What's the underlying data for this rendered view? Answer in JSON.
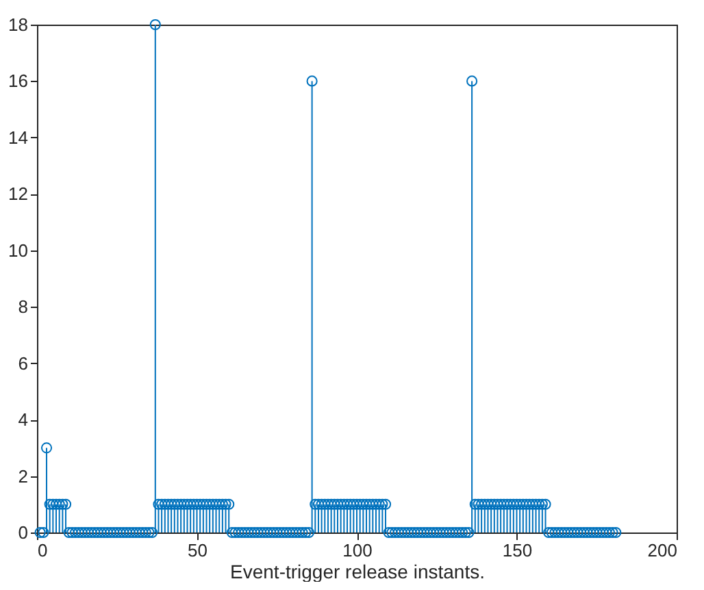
{
  "chart_data": {
    "type": "lollipop",
    "xlabel": "Event-trigger release instants.",
    "x": [
      1,
      2,
      3,
      4,
      5,
      6,
      7,
      8,
      9,
      10,
      11,
      12,
      13,
      14,
      15,
      16,
      17,
      18,
      19,
      20,
      21,
      22,
      23,
      24,
      25,
      26,
      27,
      28,
      29,
      30,
      31,
      32,
      33,
      34,
      35,
      36,
      37,
      38,
      39,
      40,
      41,
      42,
      43,
      44,
      45,
      46,
      47,
      48,
      49,
      50,
      51,
      52,
      53,
      54,
      55,
      56,
      57,
      58,
      59,
      60,
      61,
      62,
      63,
      64,
      65,
      66,
      67,
      68,
      69,
      70,
      71,
      72,
      73,
      74,
      75,
      76,
      77,
      78,
      79,
      80,
      81,
      82,
      83,
      84,
      85,
      86,
      87,
      88,
      89,
      90,
      91,
      92,
      93,
      94,
      95,
      96,
      97,
      98,
      99,
      100,
      101,
      102,
      103,
      104,
      105,
      106,
      107,
      108,
      109,
      110,
      111,
      112,
      113,
      114,
      115,
      116,
      117,
      118,
      119,
      120,
      121,
      122,
      123,
      124,
      125,
      126,
      127,
      128,
      129,
      130,
      131,
      132,
      133,
      134,
      135,
      136,
      137,
      138,
      139,
      140,
      141,
      142,
      143,
      144,
      145,
      146,
      147,
      148,
      149,
      150,
      151,
      152,
      153,
      154,
      155,
      156,
      157,
      158,
      159,
      160,
      161,
      162,
      163,
      164,
      165,
      166,
      167,
      168,
      169,
      170,
      171,
      172,
      173,
      174,
      175,
      176,
      177,
      178,
      179,
      180,
      181
    ],
    "values": [
      0,
      0,
      3,
      1,
      1,
      1,
      1,
      1,
      1,
      0,
      0,
      0,
      0,
      0,
      0,
      0,
      0,
      0,
      0,
      0,
      0,
      0,
      0,
      0,
      0,
      0,
      0,
      0,
      0,
      0,
      0,
      0,
      0,
      0,
      0,
      0,
      18,
      1,
      1,
      1,
      1,
      1,
      1,
      1,
      1,
      1,
      1,
      1,
      1,
      1,
      1,
      1,
      1,
      1,
      1,
      1,
      1,
      1,
      1,
      1,
      0,
      0,
      0,
      0,
      0,
      0,
      0,
      0,
      0,
      0,
      0,
      0,
      0,
      0,
      0,
      0,
      0,
      0,
      0,
      0,
      0,
      0,
      0,
      0,
      0,
      16,
      1,
      1,
      1,
      1,
      1,
      1,
      1,
      1,
      1,
      1,
      1,
      1,
      1,
      1,
      1,
      1,
      1,
      1,
      1,
      1,
      1,
      1,
      1,
      0,
      0,
      0,
      0,
      0,
      0,
      0,
      0,
      0,
      0,
      0,
      0,
      0,
      0,
      0,
      0,
      0,
      0,
      0,
      0,
      0,
      0,
      0,
      0,
      0,
      0,
      16,
      1,
      1,
      1,
      1,
      1,
      1,
      1,
      1,
      1,
      1,
      1,
      1,
      1,
      1,
      1,
      1,
      1,
      1,
      1,
      1,
      1,
      1,
      1,
      0,
      0,
      0,
      0,
      0,
      0,
      0,
      0,
      0,
      0,
      0,
      0,
      0,
      0,
      0,
      0,
      0,
      0,
      0,
      0,
      0,
      0
    ],
    "color": "#0072bd",
    "marker": "circle",
    "line_style": "solid",
    "grid": false,
    "xlim": [
      0,
      200
    ],
    "xticks": [
      0,
      50,
      100,
      150,
      200
    ],
    "ylim": [
      0,
      18
    ],
    "yticks": [
      0,
      2,
      4,
      6,
      8,
      10,
      12,
      14,
      16,
      18
    ]
  }
}
